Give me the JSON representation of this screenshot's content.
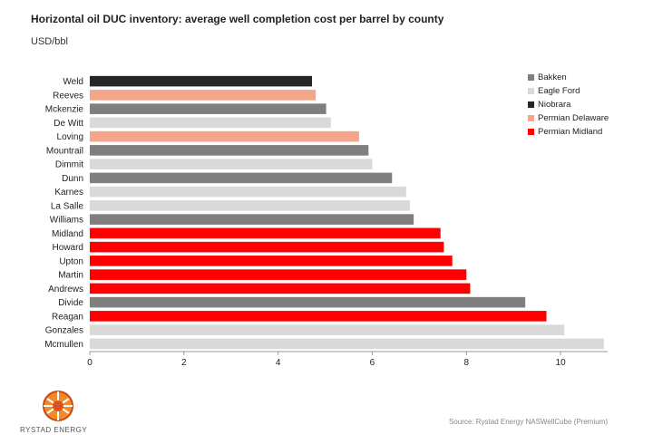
{
  "header": {
    "title": "Horizontal oil DUC inventory: average well completion cost per barrel by county",
    "unit": "USD/bbl"
  },
  "source": "Source: Rystad Energy NASWellCube  (Premium)",
  "logo_text": "RYSTAD ENERGY",
  "colors": {
    "Bakken": "#7f7f7f",
    "Eagle Ford": "#d9d9d9",
    "Niobrara": "#262626",
    "Permian Delaware": "#f4a58a",
    "Permian Midland": "#ff0000"
  },
  "chart_data": {
    "type": "bar",
    "orientation": "horizontal",
    "title": "Horizontal oil DUC inventory: average well completion cost per barrel by county",
    "xlabel": "",
    "ylabel": "USD/bbl",
    "xlim": [
      0,
      11
    ],
    "xticks": [
      0,
      2,
      4,
      6,
      8,
      10
    ],
    "legend": [
      "Bakken",
      "Eagle Ford",
      "Niobrara",
      "Permian Delaware",
      "Permian Midland"
    ],
    "legend_position": "top-right",
    "categories": [
      "Weld",
      "Reeves",
      "Mckenzie",
      "De Witt",
      "Loving",
      "Mountrail",
      "Dimmit",
      "Dunn",
      "Karnes",
      "La Salle",
      "Williams",
      "Midland",
      "Howard",
      "Upton",
      "Martin",
      "Andrews",
      "Divide",
      "Reagan",
      "Gonzales",
      "Mcmullen"
    ],
    "values": [
      4.72,
      4.8,
      5.02,
      5.12,
      5.72,
      5.92,
      6.0,
      6.42,
      6.72,
      6.8,
      6.88,
      7.45,
      7.52,
      7.7,
      8.0,
      8.08,
      9.25,
      9.7,
      10.08,
      10.92
    ],
    "groups": [
      "Niobrara",
      "Permian Delaware",
      "Bakken",
      "Eagle Ford",
      "Permian Delaware",
      "Bakken",
      "Eagle Ford",
      "Bakken",
      "Eagle Ford",
      "Eagle Ford",
      "Bakken",
      "Permian Midland",
      "Permian Midland",
      "Permian Midland",
      "Permian Midland",
      "Permian Midland",
      "Bakken",
      "Permian Midland",
      "Eagle Ford",
      "Eagle Ford"
    ]
  }
}
